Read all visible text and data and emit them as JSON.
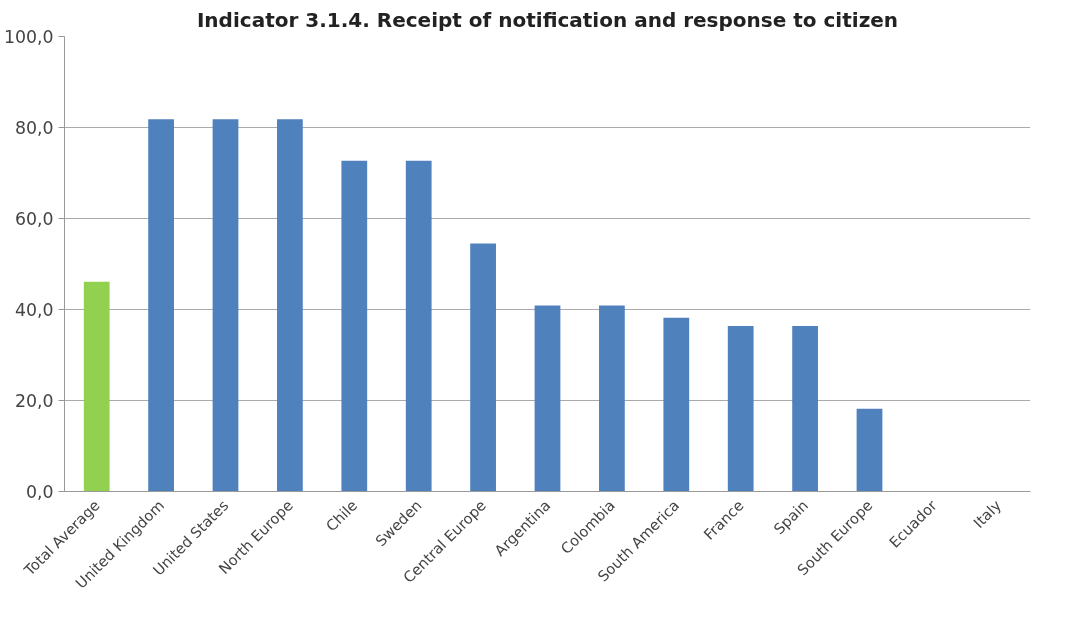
{
  "chart_data": {
    "type": "bar",
    "title": "Indicator 3.1.4. Receipt of notification and response to citizen",
    "categories": [
      "Total Average",
      "United Kingdom",
      "United States",
      "North Europe",
      "Chile",
      "Sweden",
      "Central Europe",
      "Argentina",
      "Colombia",
      "South America",
      "France",
      "Spain",
      "South Europe",
      "Ecuador",
      "Italy"
    ],
    "values": [
      46.1,
      81.8,
      81.8,
      81.8,
      72.7,
      72.7,
      54.5,
      40.9,
      40.9,
      38.2,
      36.4,
      36.4,
      18.2,
      0,
      0
    ],
    "colors": [
      "#92d050",
      "#4f81bd",
      "#4f81bd",
      "#4f81bd",
      "#4f81bd",
      "#4f81bd",
      "#4f81bd",
      "#4f81bd",
      "#4f81bd",
      "#4f81bd",
      "#4f81bd",
      "#4f81bd",
      "#4f81bd",
      "#4f81bd",
      "#4f81bd"
    ],
    "ylim": [
      0,
      100
    ],
    "yticks": [
      {
        "value": 0,
        "label": "0,0"
      },
      {
        "value": 20,
        "label": "20,0"
      },
      {
        "value": 40,
        "label": "40,0"
      },
      {
        "value": 60,
        "label": "60,0"
      },
      {
        "value": 80,
        "label": "80,0"
      },
      {
        "value": 100,
        "label": "100,0"
      }
    ],
    "grid": "y"
  }
}
